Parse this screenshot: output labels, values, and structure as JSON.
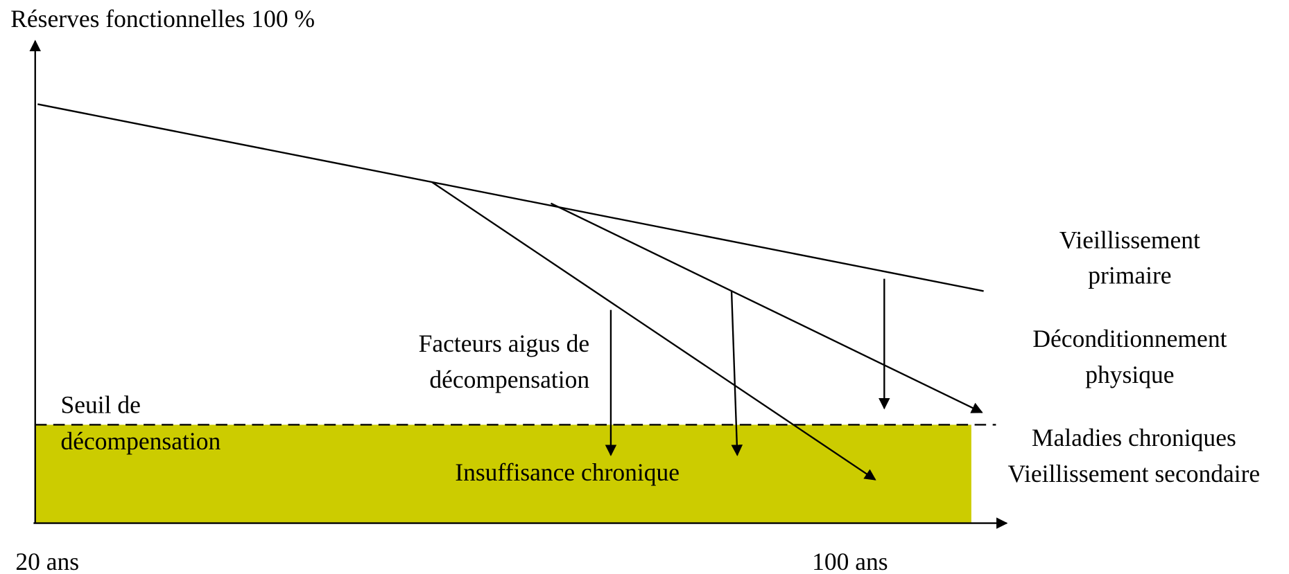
{
  "y_axis_label": "Réserves fonctionnelles 100 %",
  "x_axis_labels": {
    "start": "20 ans",
    "end": "100 ans"
  },
  "curves": [
    {
      "label": [
        "Vieillissement",
        "primaire"
      ]
    },
    {
      "label": [
        "Déconditionnement",
        "physique"
      ]
    },
    {
      "label": [
        "Maladies chroniques",
        "Vieillissement secondaire"
      ]
    }
  ],
  "acute_factors": [
    "Facteurs aigus de",
    "décompensation"
  ],
  "threshold": [
    "Seuil de",
    "décompensation"
  ],
  "zone": "Insuffisance chronique"
}
